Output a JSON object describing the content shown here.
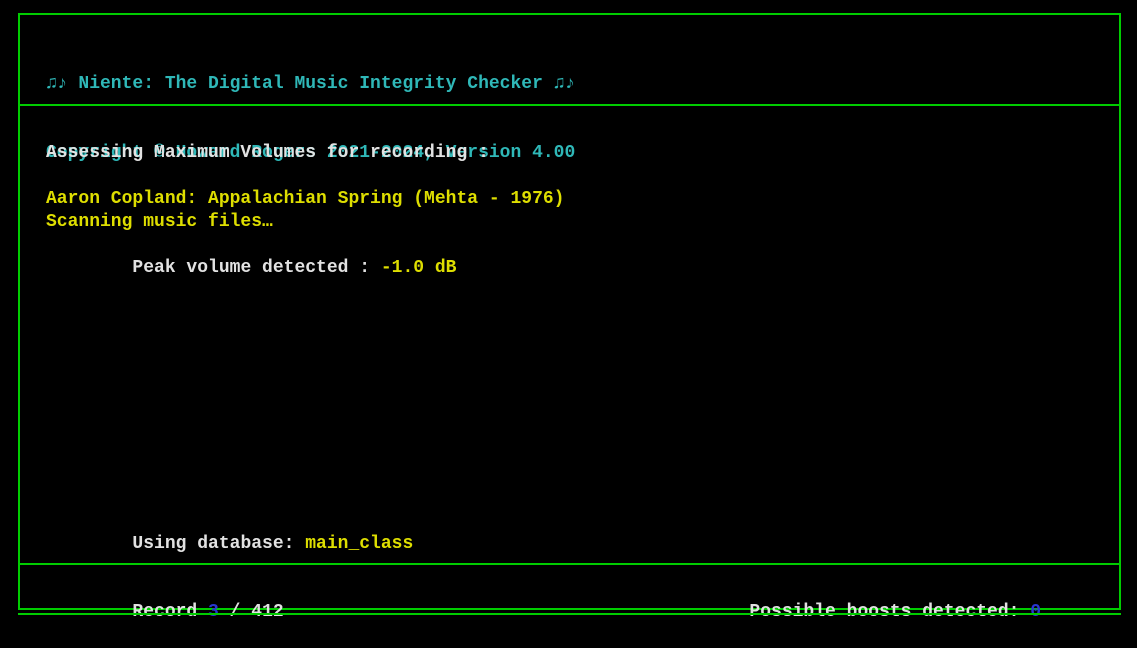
{
  "colors": {
    "background": "#000000",
    "border": "#00cc00",
    "cyan": "#2fb8b8",
    "yellow": "#dede00",
    "white": "#e2e2e2",
    "blue": "#2936d3"
  },
  "header": {
    "title": "♫♪ Niente: The Digital Music Integrity Checker ♫♪",
    "copyright": "Copyright © Howard Rogers 2021-2024, Version 4.00",
    "scan_status": "Scanning music files…"
  },
  "main": {
    "assessing_label": "Assessing Maximum Volumes for recording :",
    "recording_title": "Aaron Copland: Appalachian Spring (Mehta - 1976)",
    "peak_label": "Peak volume detected : ",
    "peak_value": "-1.0 dB",
    "database_label": "Using database: ",
    "database_name": "main_class"
  },
  "status_bar": {
    "record_label": "Record ",
    "record_number": "3",
    "record_total": " / 412",
    "boosts_label": "Possible boosts detected: ",
    "boosts_value": "0"
  }
}
